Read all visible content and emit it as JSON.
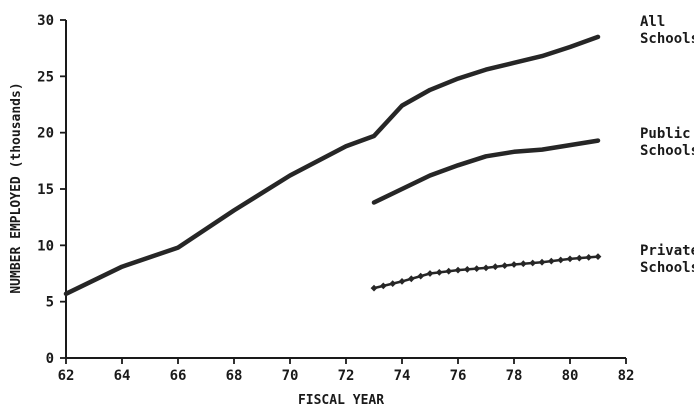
{
  "chart_data": {
    "type": "line",
    "xlabel": "FISCAL YEAR",
    "ylabel": "NUMBER EMPLOYED (thousands)",
    "xlim": [
      62,
      82
    ],
    "ylim": [
      0,
      30
    ],
    "x_ticks": [
      "62",
      "64",
      "66",
      "68",
      "70",
      "72",
      "74",
      "76",
      "78",
      "80",
      "82"
    ],
    "y_ticks": [
      "0",
      "5",
      "10",
      "15",
      "20",
      "25",
      "30"
    ],
    "grid": false,
    "series": [
      {
        "name": "All Schools",
        "label_lines": [
          "All",
          "Schools"
        ],
        "style": "solid",
        "x": [
          62,
          64,
          66,
          68,
          70,
          72,
          73,
          74,
          75,
          76,
          77,
          78,
          79,
          80,
          81
        ],
        "y": [
          5.7,
          8.1,
          9.8,
          13.1,
          16.2,
          18.8,
          19.7,
          22.4,
          23.8,
          24.8,
          25.6,
          26.2,
          26.8,
          27.6,
          28.5
        ]
      },
      {
        "name": "Public Schools",
        "label_lines": [
          "Public",
          "Schools"
        ],
        "style": "solid",
        "x": [
          73,
          74,
          75,
          76,
          77,
          78,
          79,
          80,
          81
        ],
        "y": [
          13.8,
          15.0,
          16.2,
          17.1,
          17.9,
          18.3,
          18.5,
          18.9,
          19.3
        ]
      },
      {
        "name": "Private Schools",
        "label_lines": [
          "Private",
          "Schools"
        ],
        "style": "dotted-markers",
        "x": [
          73,
          74,
          75,
          76,
          77,
          78,
          79,
          80,
          81
        ],
        "y": [
          6.2,
          6.8,
          7.5,
          7.8,
          8.0,
          8.3,
          8.5,
          8.8,
          9.0
        ]
      }
    ]
  }
}
